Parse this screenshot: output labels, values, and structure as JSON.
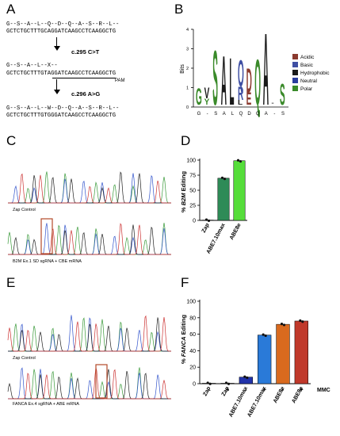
{
  "panel_letters": [
    "A",
    "B",
    "C",
    "D",
    "E",
    "F"
  ],
  "panelA": {
    "rows": [
      {
        "aa": "G--S--A--L--Q--D--Q--A--S--R--L--",
        "dna": "GCTCTGCTTTGCAGGATCAAGCCTCAAGGCTG"
      },
      {
        "aa": "G--S--A--L--X--",
        "dna": "GCTCTGCTTTGTAGGATCAAGCCTCAAGGCTG"
      },
      {
        "aa": "G--S--A--L--W--D--Q--A--S--R--L--",
        "dna": "GCTCTGCTTTGTGGGATCAAGCCTCAAGGCTG"
      }
    ],
    "mutation1": "c.295 C>T",
    "mutation2": "c.296 A>G",
    "pam": "PAM"
  },
  "panelB": {
    "ylabel": "Bits",
    "positions": [
      "G",
      "-",
      "S",
      "A",
      "L",
      "Q",
      "D",
      "Q",
      "A",
      "-",
      "S"
    ],
    "yticks": [
      "0",
      "1",
      "2",
      "3",
      "4"
    ],
    "legend": [
      {
        "label": "Acidic",
        "color": "#8b3a2e"
      },
      {
        "label": "Basic",
        "color": "#3f4fa3"
      },
      {
        "label": "Hydrophobic",
        "color": "#1a1a1a"
      },
      {
        "label": "Neutral",
        "color": "#2a3d9e"
      },
      {
        "label": "Polar",
        "color": "#3a8a2a"
      }
    ]
  },
  "panelC": {
    "control_label": "Zap Control",
    "edited_label": "B2M Ex.1 SD sgRNA + CBE mRNA"
  },
  "panelE": {
    "control_label": "Zap Control",
    "edited_label": "FANCA Ex.4 sgRNA + ABE mRNA"
  },
  "chart_data": [
    {
      "type": "bar",
      "title": "",
      "ylabel_prefix": "% ",
      "ylabel_gene": "B2M",
      "ylabel_suffix": " Editing",
      "ylim": [
        0,
        100
      ],
      "yticks": [
        0,
        25,
        50,
        75,
        100
      ],
      "categories": [
        "Zap",
        "ABE7.10max",
        "ABE8e"
      ],
      "values": [
        0.5,
        70,
        99
      ],
      "colors": [
        "#1a1a1a",
        "#2e8b57",
        "#55dd3a"
      ]
    },
    {
      "type": "bar",
      "title": "",
      "ylabel_prefix": "% ",
      "ylabel_gene": "FANCA",
      "ylabel_suffix": " Editing",
      "ylim": [
        0,
        100
      ],
      "yticks": [
        0,
        20,
        40,
        60,
        80,
        100
      ],
      "categories": [
        "Zap",
        "Zap",
        "ABE7.10max",
        "ABE7.10max",
        "ABE8e",
        "ABE8e"
      ],
      "mmc": [
        "-",
        "+",
        "-",
        "+",
        "-",
        "+"
      ],
      "mmc_label": "MMC",
      "values": [
        0.5,
        0.5,
        8,
        59,
        72,
        76
      ],
      "colors": [
        "#1a1a1a",
        "#1a1a1a",
        "#2233aa",
        "#2a7ad8",
        "#d96a1e",
        "#c0392b"
      ]
    }
  ]
}
